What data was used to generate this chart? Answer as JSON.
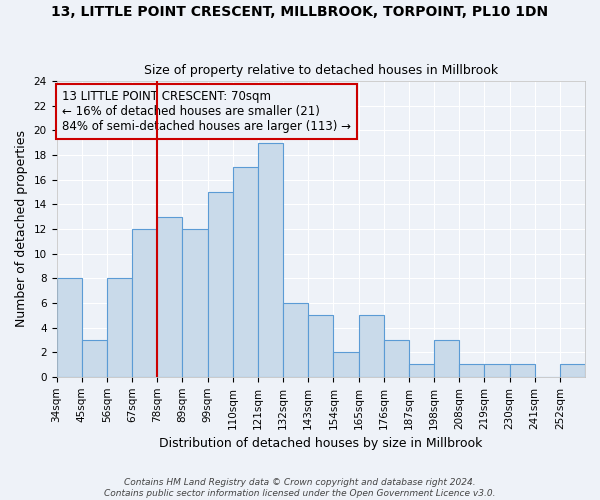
{
  "title": "13, LITTLE POINT CRESCENT, MILLBROOK, TORPOINT, PL10 1DN",
  "subtitle": "Size of property relative to detached houses in Millbrook",
  "xlabel": "Distribution of detached houses by size in Millbrook",
  "ylabel": "Number of detached properties",
  "bin_labels": [
    "34sqm",
    "45sqm",
    "56sqm",
    "67sqm",
    "78sqm",
    "89sqm",
    "99sqm",
    "110sqm",
    "121sqm",
    "132sqm",
    "143sqm",
    "154sqm",
    "165sqm",
    "176sqm",
    "187sqm",
    "198sqm",
    "208sqm",
    "219sqm",
    "230sqm",
    "241sqm",
    "252sqm"
  ],
  "bin_counts": [
    8,
    3,
    8,
    12,
    13,
    12,
    15,
    17,
    19,
    6,
    5,
    2,
    5,
    3,
    1,
    3,
    1,
    1,
    1,
    0,
    1
  ],
  "bar_color": "#c9daea",
  "bar_edge_color": "#5b9bd5",
  "red_line_x": 3.5,
  "annotation_line1": "13 LITTLE POINT CRESCENT: 70sqm",
  "annotation_line2": "← 16% of detached houses are smaller (21)",
  "annotation_line3": "84% of semi-detached houses are larger (113) →",
  "annotation_box_edge": "#cc0000",
  "ylim": [
    0,
    24
  ],
  "yticks": [
    0,
    2,
    4,
    6,
    8,
    10,
    12,
    14,
    16,
    18,
    20,
    22,
    24
  ],
  "footer_line1": "Contains HM Land Registry data © Crown copyright and database right 2024.",
  "footer_line2": "Contains public sector information licensed under the Open Government Licence v3.0.",
  "bg_color": "#eef2f8",
  "grid_color": "#ffffff",
  "title_fontsize": 10,
  "subtitle_fontsize": 9,
  "tick_fontsize": 7.5,
  "ylabel_fontsize": 9,
  "xlabel_fontsize": 9,
  "annotation_fontsize": 8.5
}
